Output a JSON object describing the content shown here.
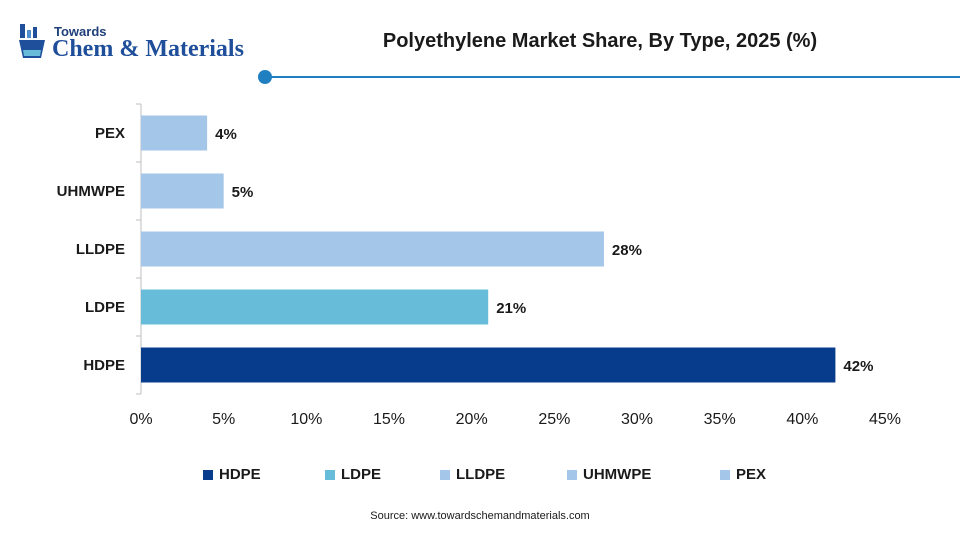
{
  "brand": {
    "small": "Towards",
    "big": "Chem & Materials"
  },
  "colors": {
    "accent": "#1f7fc0",
    "HDPE": "#073b8c",
    "LDPE": "#67bcd9",
    "LLDPE": "#a4c6e8",
    "UHMWPE": "#a4c6e8",
    "PEX": "#a4c6e8"
  },
  "chart_data": {
    "type": "bar",
    "orientation": "horizontal",
    "title": "Polyethylene Market Share, By Type, 2025 (%)",
    "categories": [
      "PEX",
      "UHMWPE",
      "LLDPE",
      "LDPE",
      "HDPE"
    ],
    "values": [
      4,
      5,
      28,
      21,
      42
    ],
    "value_labels": [
      "4%",
      "5%",
      "28%",
      "21%",
      "42%"
    ],
    "xlim": [
      0,
      45
    ],
    "x_ticks": [
      0,
      5,
      10,
      15,
      20,
      25,
      30,
      35,
      40,
      45
    ],
    "x_tick_labels": [
      "0%",
      "5%",
      "10%",
      "15%",
      "20%",
      "25%",
      "30%",
      "35%",
      "40%",
      "45%"
    ],
    "grid": false,
    "legend_position": "bottom",
    "legend": [
      "HDPE",
      "LDPE",
      "LLDPE",
      "UHMWPE",
      "PEX"
    ]
  },
  "source": "Source: www.towardschemandmaterials.com"
}
